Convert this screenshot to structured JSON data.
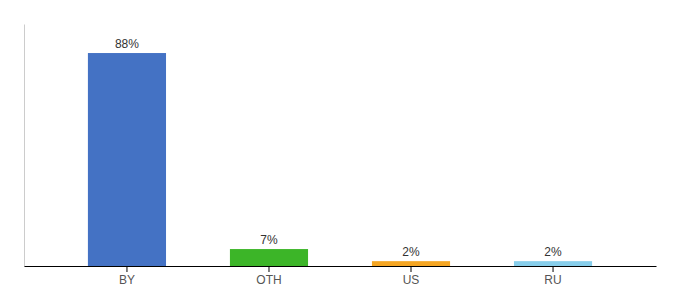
{
  "chart_data": {
    "type": "bar",
    "categories": [
      "BY",
      "OTH",
      "US",
      "RU"
    ],
    "values": [
      88,
      7,
      2,
      2
    ],
    "value_labels": [
      "88%",
      "7%",
      "2%",
      "2%"
    ],
    "data_labels": true,
    "colors": [
      "#4472c4",
      "#3cb528",
      "#f5a623",
      "#87ceeb"
    ],
    "ylim": [
      0,
      100
    ],
    "tick_labels": "x"
  }
}
